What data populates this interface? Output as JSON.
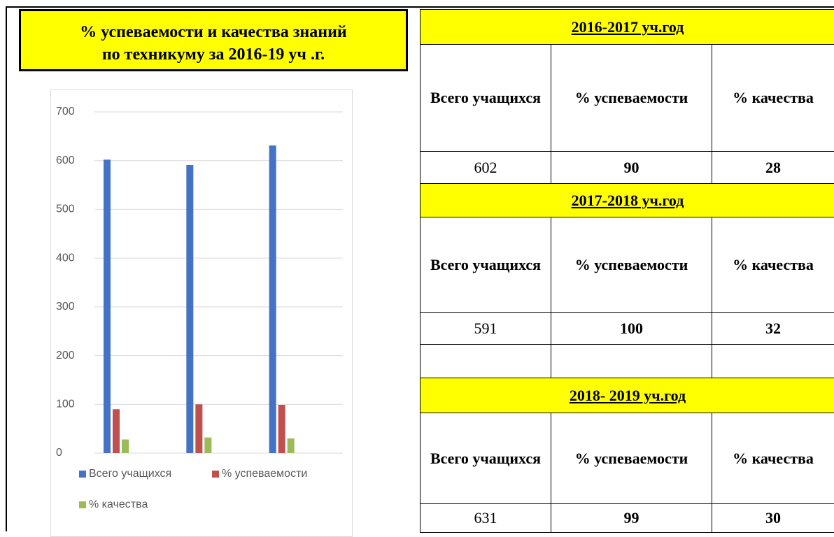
{
  "title": [
    "% успеваемости и качества знаний",
    "по техникуму за 2016-19 уч .г."
  ],
  "chart_data": {
    "type": "bar",
    "categories": [
      null,
      null,
      null
    ],
    "series": [
      {
        "name": "Всего учащихся",
        "color": "#4472c4",
        "values": [
          602,
          591,
          631
        ]
      },
      {
        "name": "% успеваемости",
        "color": "#c0504d",
        "values": [
          90,
          100,
          99
        ]
      },
      {
        "name": "% качества",
        "color": "#9bbb59",
        "values": [
          28,
          32,
          30
        ]
      }
    ],
    "ylim": [
      0,
      700
    ],
    "yticks": [
      0,
      100,
      200,
      300,
      400,
      500,
      600,
      700
    ],
    "grid": true
  },
  "tables": [
    {
      "year": "2016-2017 уч.год",
      "header": [
        "Всего учащихся",
        "% успеваемости",
        "% качества"
      ],
      "row": [
        "602",
        "90",
        "28"
      ]
    },
    {
      "year": "2017-2018 уч.год",
      "header": [
        "Всего учащихся",
        "% успеваемости",
        "% качества"
      ],
      "row": [
        "591",
        "100",
        "32"
      ]
    },
    {
      "year": "2018- 2019 уч.год",
      "header": [
        "Всего учащихся",
        "% успеваемости",
        "% качества"
      ],
      "row": [
        "631",
        "99",
        "30"
      ]
    }
  ]
}
